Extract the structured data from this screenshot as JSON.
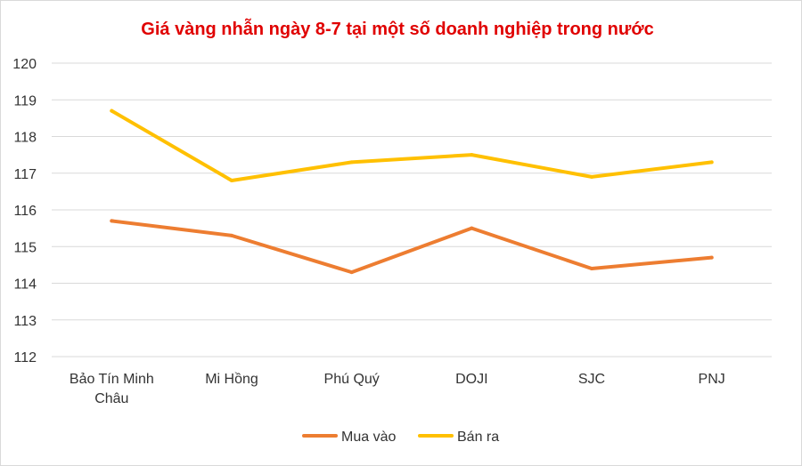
{
  "chart_data": {
    "type": "line",
    "title": "Giá vàng nhẫn ngày 8-7 tại một số doanh nghiệp trong nước",
    "categories": [
      [
        "Bảo Tín Minh",
        "Châu"
      ],
      [
        "Mi Hồng"
      ],
      [
        "Phú Quý"
      ],
      [
        "DOJI"
      ],
      [
        "SJC"
      ],
      [
        "PNJ"
      ]
    ],
    "ylim": [
      112,
      120
    ],
    "yticks": [
      "120",
      "119",
      "118",
      "117",
      "116",
      "115",
      "114",
      "113",
      "112"
    ],
    "grid": true,
    "legend_position": "bottom",
    "series": [
      {
        "name": "Mua vào",
        "color": "#ed7d31",
        "values": [
          115.7,
          115.3,
          114.3,
          115.5,
          114.4,
          114.7
        ]
      },
      {
        "name": "Bán ra",
        "color": "#ffc000",
        "values": [
          118.7,
          116.8,
          117.3,
          117.5,
          116.9,
          117.3
        ]
      }
    ]
  }
}
